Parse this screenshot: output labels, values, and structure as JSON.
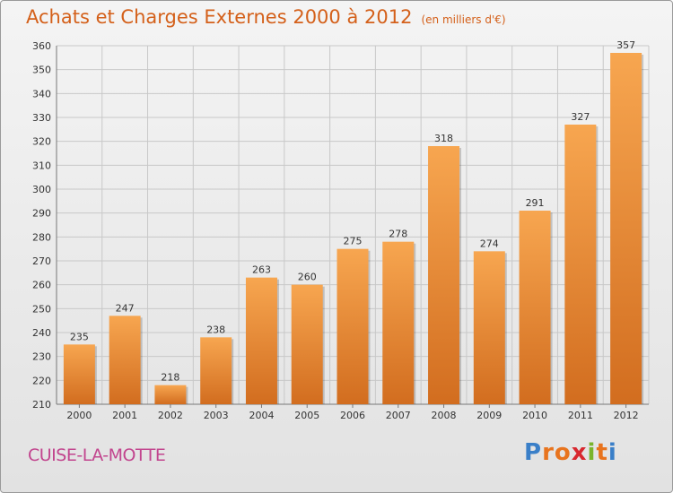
{
  "title": "Achats et Charges Externes 2000 à 2012",
  "unit": "(en milliers d'€)",
  "commune": "CUISE-LA-MOTTE",
  "logo": {
    "letters": [
      "P",
      "r",
      "o",
      "x",
      "i",
      "t",
      "i"
    ],
    "colors": [
      "#3a7fc8",
      "#e8741e",
      "#e8741e",
      "#d8282f",
      "#7ab42c",
      "#e8741e",
      "#3a7fc8"
    ]
  },
  "colors": {
    "bar_top": "#f7a650",
    "bar_bottom": "#d26d1f",
    "title": "#d4601a",
    "commune": "#c2458e",
    "grid": "#c8c8c8",
    "text": "#333333"
  },
  "chart_data": {
    "type": "bar",
    "categories": [
      "2000",
      "2001",
      "2002",
      "2003",
      "2004",
      "2005",
      "2006",
      "2007",
      "2008",
      "2009",
      "2010",
      "2011",
      "2012"
    ],
    "values": [
      235,
      247,
      218,
      238,
      263,
      260,
      275,
      278,
      318,
      274,
      291,
      327,
      357
    ],
    "ylim": [
      210,
      360
    ],
    "yticks": [
      210,
      220,
      230,
      240,
      250,
      260,
      270,
      280,
      290,
      300,
      310,
      320,
      330,
      340,
      350,
      360
    ],
    "grid": true,
    "data_labels": true
  }
}
